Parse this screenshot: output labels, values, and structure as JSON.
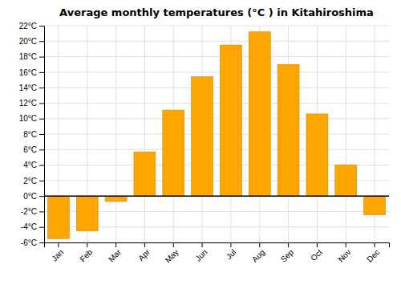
{
  "chart_data": {
    "type": "bar",
    "title": "Average monthly temperatures (°C ) in Kitahiroshima",
    "categories": [
      "Jan",
      "Feb",
      "Mar",
      "Apr",
      "May",
      "Jun",
      "Jul",
      "Aug",
      "Sep",
      "Oct",
      "Nov",
      "Dec"
    ],
    "values": [
      -5.5,
      -4.5,
      -0.7,
      5.7,
      11.1,
      15.4,
      19.5,
      21.2,
      17.0,
      10.6,
      4.0,
      -2.4
    ],
    "color": "#FFA500",
    "ylim": [
      -6,
      22
    ],
    "yticks": [
      {
        "value": -6,
        "label": "-6°C"
      },
      {
        "value": -4,
        "label": "-4°C"
      },
      {
        "value": -2,
        "label": "-2°C"
      },
      {
        "value": 0,
        "label": "0°C"
      },
      {
        "value": 2,
        "label": "2°C"
      },
      {
        "value": 4,
        "label": "4°C"
      },
      {
        "value": 6,
        "label": "6°C"
      },
      {
        "value": 8,
        "label": "8°C"
      },
      {
        "value": 10,
        "label": "10°C"
      },
      {
        "value": 12,
        "label": "12°C"
      },
      {
        "value": 14,
        "label": "14°C"
      },
      {
        "value": 16,
        "label": "16°C"
      },
      {
        "value": 18,
        "label": "18°C"
      },
      {
        "value": 20,
        "label": "20°C"
      },
      {
        "value": 22,
        "label": "22°C"
      }
    ],
    "grid": true
  }
}
